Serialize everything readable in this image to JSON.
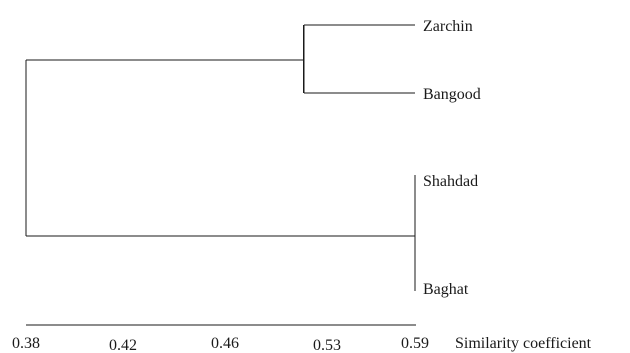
{
  "chart_data": {
    "type": "dendrogram",
    "xlabel": "Similarity coefficient",
    "xticks": [
      0.38,
      0.42,
      0.46,
      0.53,
      0.59
    ],
    "tick_labels": [
      "0.38",
      "0.42",
      "0.46",
      "0.53",
      "0.59"
    ],
    "leaves": [
      "Zarchin",
      "Bangood",
      "Shahdad",
      "Baghat"
    ],
    "merges": [
      {
        "left": "Zarchin",
        "right": "Bangood",
        "similarity": 0.53
      },
      {
        "left": "Shahdad",
        "right": "Baghat",
        "similarity": 0.59
      },
      {
        "left": "Zarchin+Bangood",
        "right": "Shahdad+Baghat",
        "similarity": 0.38
      }
    ],
    "grid": false
  }
}
